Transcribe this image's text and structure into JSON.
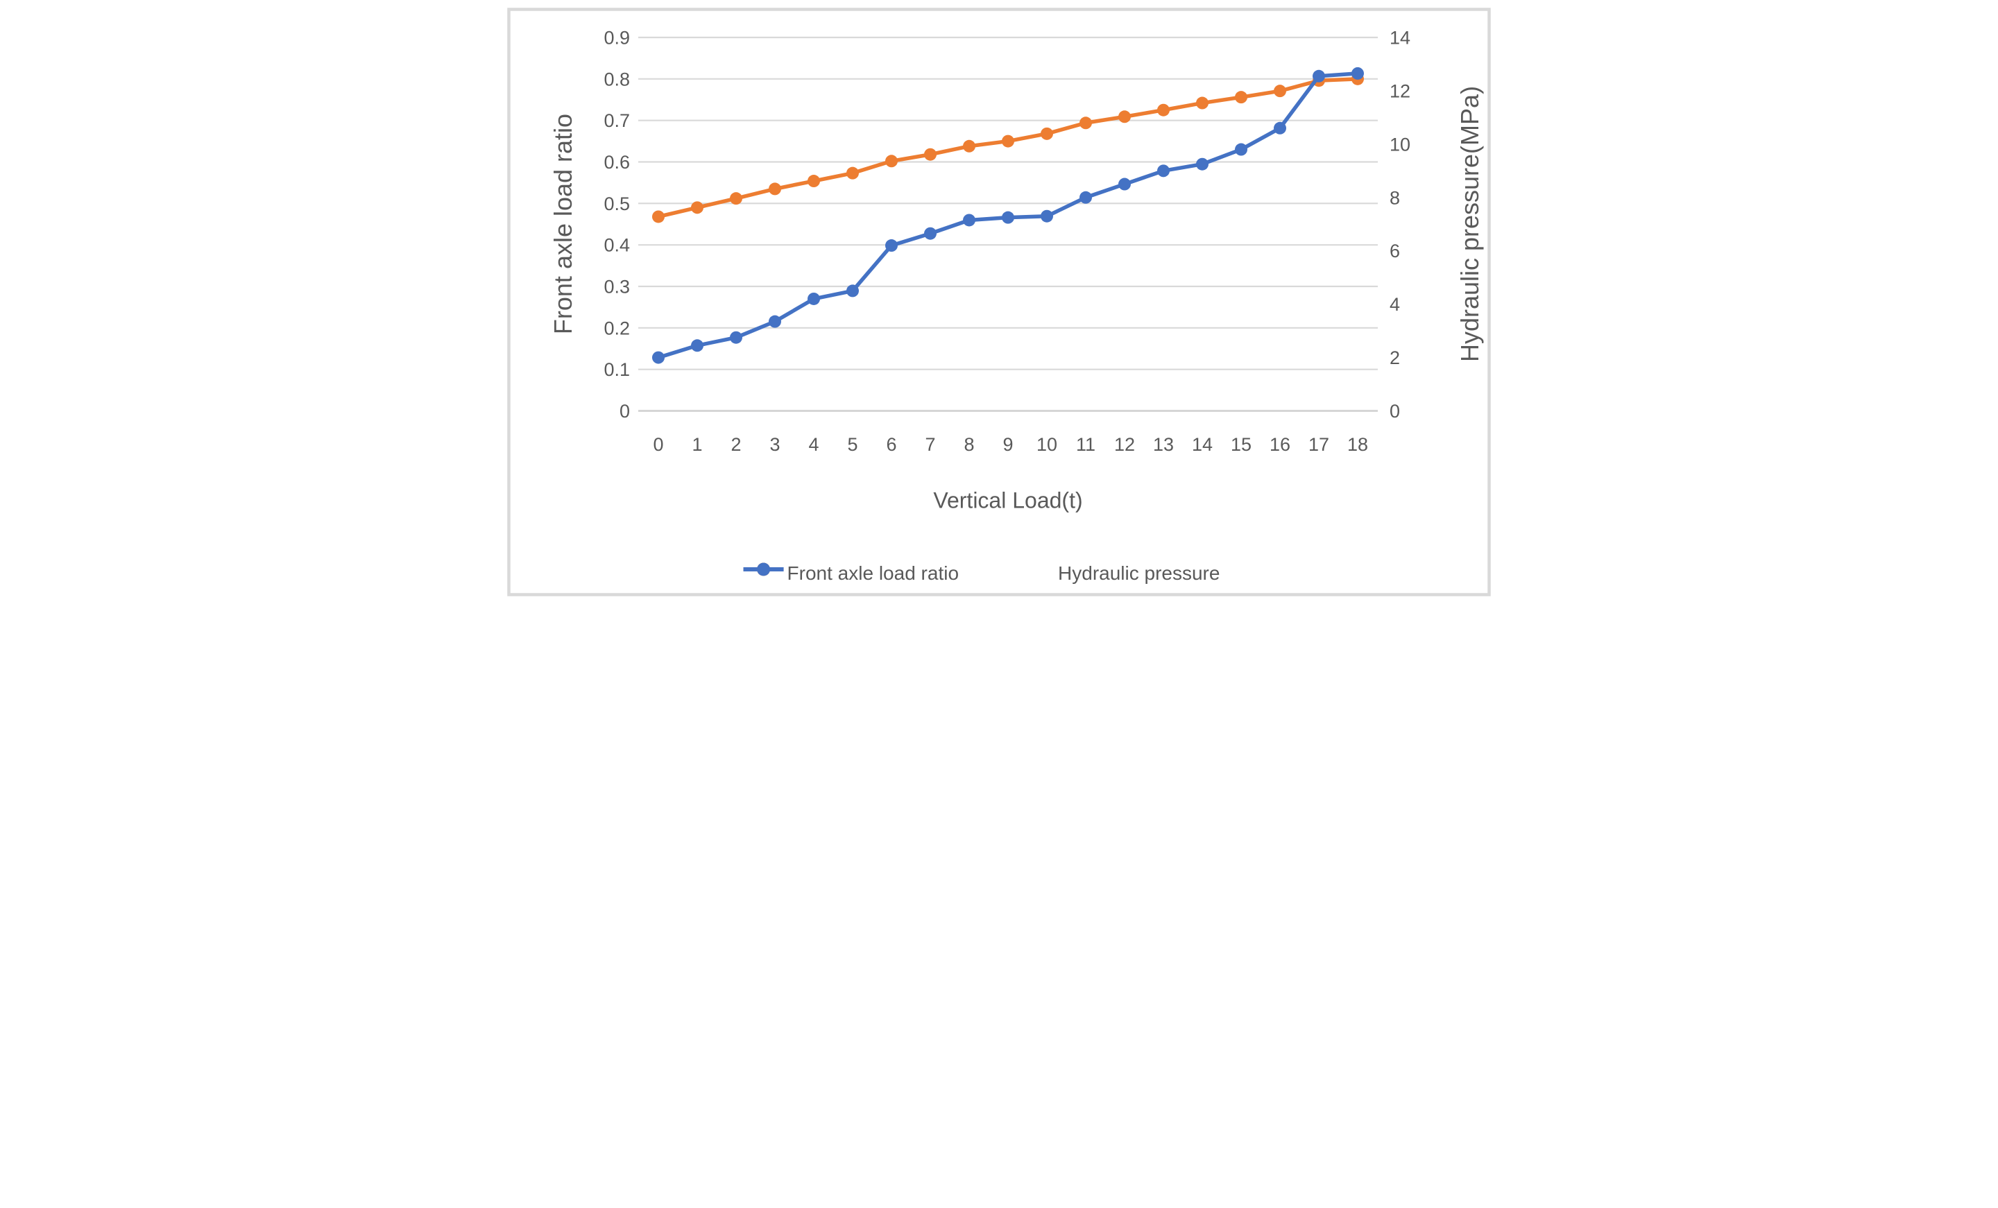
{
  "chart_data": {
    "type": "line",
    "title": "",
    "xlabel": "Vertical Load(t)",
    "ylabel_left": "Front axle load ratio",
    "ylabel_right": "Hydraulic pressure(MPa)",
    "x_tick_labels": [
      "0",
      "1",
      "2",
      "3",
      "4",
      "5",
      "6",
      "7",
      "8",
      "9",
      "10",
      "11",
      "12",
      "13",
      "14",
      "15",
      "16",
      "17",
      "18"
    ],
    "left_axis": {
      "min": 0,
      "max": 0.9,
      "ticks": [
        {
          "v": 0.9,
          "label": "0.9"
        },
        {
          "v": 0.8,
          "label": "0.8"
        },
        {
          "v": 0.7,
          "label": "0.7"
        },
        {
          "v": 0.6,
          "label": "0.6"
        },
        {
          "v": 0.5,
          "label": "0.5"
        },
        {
          "v": 0.4,
          "label": "0.4"
        },
        {
          "v": 0.3,
          "label": "0.3"
        },
        {
          "v": 0.2,
          "label": "0.2"
        },
        {
          "v": 0.1,
          "label": "0.1"
        },
        {
          "v": 0,
          "label": "0"
        }
      ]
    },
    "right_axis": {
      "min": 0,
      "max": 14,
      "ticks": [
        {
          "v": 14,
          "label": "14"
        },
        {
          "v": 12,
          "label": "12"
        },
        {
          "v": 10,
          "label": "10"
        },
        {
          "v": 8,
          "label": "8"
        },
        {
          "v": 6,
          "label": "6"
        },
        {
          "v": 4,
          "label": "4"
        },
        {
          "v": 2,
          "label": "2"
        },
        {
          "v": 0,
          "label": "0"
        }
      ]
    },
    "grid": true,
    "legend_position": "bottom",
    "series": [
      {
        "name": "Front axle load ratio",
        "axis": "left",
        "color": "#ED7D31",
        "marker": "circle",
        "values": [
          0.468,
          0.49,
          0.512,
          0.535,
          0.554,
          0.573,
          0.602,
          0.618,
          0.638,
          0.65,
          0.668,
          0.694,
          0.709,
          0.725,
          0.742,
          0.756,
          0.771,
          0.796,
          0.8
        ]
      },
      {
        "name": "Hydraulic pressure",
        "axis": "right",
        "color": "#4472C4",
        "marker": "circle",
        "values": [
          2.0,
          2.45,
          2.75,
          3.35,
          4.2,
          4.5,
          6.2,
          6.65,
          7.15,
          7.25,
          7.3,
          8.0,
          8.5,
          9.0,
          9.25,
          9.8,
          10.6,
          12.55,
          12.65
        ]
      }
    ],
    "background": "#FFFFFF",
    "grid_color": "#D9D9D9",
    "axis_line_color": "#D6D6D6",
    "frame_color": "#D9D9D9",
    "text_color": "#595959"
  }
}
